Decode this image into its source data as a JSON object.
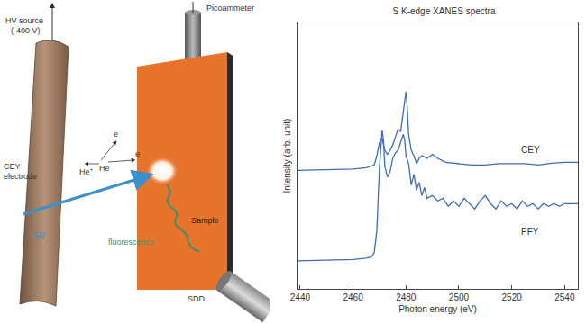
{
  "diagram": {
    "labels": {
      "hv_source": "HV source",
      "hv_voltage": "(-400 V)",
      "picoammeter": "Picoammeter",
      "electrode_1": "CEY",
      "electrode_2": "electrode",
      "he_ion": "He⁺",
      "he": "He",
      "e1": "e",
      "e2": "e",
      "sample": "Sample",
      "fluorescence": "fluorescence",
      "sr": "SR",
      "sdd": "SDD"
    }
  },
  "chart_data": {
    "type": "line",
    "title": "S K-edge XANES spectra",
    "x_label": "Photon energy (eV)",
    "y_label": "Intensity (arb. unit)",
    "xlim": [
      2439,
      2545
    ],
    "xticks": [
      2440,
      2460,
      2480,
      2500,
      2520,
      2540
    ],
    "ylim": [
      0,
      10
    ],
    "tick_labels": "x",
    "grid": false,
    "series": [
      {
        "name": "CEY",
        "color": "#3c6db4",
        "x": [
          2439,
          2450,
          2460,
          2465,
          2468,
          2469,
          2470,
          2471,
          2472,
          2473,
          2474,
          2475,
          2476,
          2477,
          2478,
          2479,
          2480,
          2480.5,
          2481,
          2482,
          2483,
          2484,
          2485,
          2486,
          2488,
          2490,
          2492,
          2495,
          2500,
          2505,
          2510,
          2515,
          2520,
          2525,
          2530,
          2535,
          2540,
          2545
        ],
        "values": [
          4.45,
          4.47,
          4.5,
          4.55,
          4.65,
          5.0,
          5.5,
          5.65,
          5.2,
          5.05,
          5.2,
          5.4,
          5.7,
          6.0,
          5.9,
          6.6,
          7.4,
          6.8,
          5.8,
          5.2,
          5.0,
          4.7,
          4.9,
          5.0,
          4.9,
          5.05,
          4.9,
          4.75,
          4.7,
          4.65,
          4.65,
          4.7,
          4.7,
          4.7,
          4.65,
          4.72,
          4.75,
          4.75
        ]
      },
      {
        "name": "PFY",
        "color": "#3c6db4",
        "x": [
          2439,
          2450,
          2460,
          2465,
          2467,
          2468,
          2469,
          2470,
          2471,
          2471.5,
          2472,
          2473,
          2474,
          2475,
          2476,
          2477,
          2478,
          2479,
          2479.5,
          2480,
          2481,
          2482,
          2483,
          2484,
          2485,
          2486,
          2487,
          2488,
          2490,
          2492,
          2494,
          2496,
          2498,
          2500,
          2502,
          2504,
          2506,
          2508,
          2510,
          2512,
          2514,
          2516,
          2518,
          2520,
          2522,
          2524,
          2526,
          2528,
          2530,
          2532,
          2534,
          2536,
          2538,
          2540,
          2545
        ],
        "values": [
          1.05,
          1.07,
          1.1,
          1.15,
          1.2,
          1.35,
          2.2,
          4.6,
          5.95,
          5.6,
          4.6,
          4.2,
          4.4,
          4.9,
          5.1,
          5.2,
          5.5,
          5.8,
          5.6,
          5.0,
          4.7,
          3.9,
          4.3,
          3.7,
          4.0,
          3.5,
          3.8,
          3.4,
          3.5,
          3.3,
          3.4,
          3.1,
          3.3,
          3.1,
          3.4,
          3.2,
          3.0,
          3.3,
          3.5,
          3.2,
          3.0,
          3.3,
          3.1,
          3.2,
          3.0,
          3.3,
          3.1,
          3.2,
          3.0,
          3.2,
          3.1,
          3.2,
          3.1,
          3.2,
          3.2
        ]
      }
    ]
  }
}
